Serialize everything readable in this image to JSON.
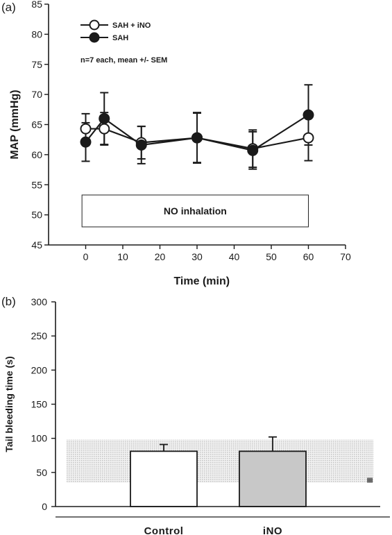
{
  "panels": {
    "a_label": "(a)",
    "b_label": "(b)"
  },
  "chart_data": [
    {
      "type": "line",
      "xlabel": "Time (min)",
      "ylabel": "MAP (mmHg)",
      "xlim": [
        -10,
        70
      ],
      "ylim": [
        45,
        85
      ],
      "xticks": [
        0,
        10,
        20,
        30,
        40,
        50,
        60,
        70
      ],
      "yticks": [
        45,
        50,
        55,
        60,
        65,
        70,
        75,
        80,
        85
      ],
      "grid": false,
      "legend_position": "top-left",
      "annotation": "n=7 each, mean +/- SEM",
      "box": {
        "label": "NO inhalation",
        "x_start": -1,
        "x_end": 60,
        "y_bottom": 48,
        "y_top": 53.3
      },
      "series": [
        {
          "name": "SAH + iNO",
          "marker": "open-circle",
          "x": [
            0,
            5,
            15,
            30,
            45,
            60
          ],
          "values": [
            64.3,
            64.3,
            62.0,
            62.8,
            61.0,
            62.8
          ],
          "error": [
            2.5,
            2.7,
            2.7,
            4.1,
            3.1,
            3.8
          ]
        },
        {
          "name": "SAH",
          "marker": "filled-circle",
          "x": [
            0,
            5,
            15,
            30,
            45,
            60
          ],
          "values": [
            62.1,
            66.0,
            61.6,
            62.8,
            60.7,
            66.6
          ],
          "error": [
            3.2,
            4.3,
            3.1,
            4.2,
            3.1,
            5.0
          ]
        }
      ]
    },
    {
      "type": "bar",
      "xlabel": "",
      "ylabel": "Tail bleeding time (s)",
      "ylim": [
        0,
        300
      ],
      "yticks": [
        0,
        50,
        100,
        150,
        200,
        250,
        300
      ],
      "grid": false,
      "categories": [
        "Control",
        "iNO"
      ],
      "values": [
        81,
        81
      ],
      "error": [
        10,
        21
      ],
      "bar_colors": [
        "#ffffff",
        "#c8c8c8"
      ],
      "reference_band": {
        "low": 35,
        "high": 98
      }
    }
  ]
}
